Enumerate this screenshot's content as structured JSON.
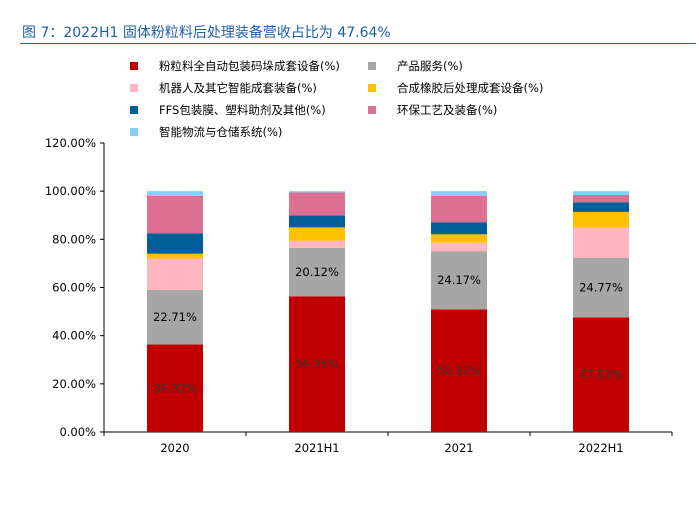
{
  "figure": {
    "title": "图 7：2022H1 固体粉粒料后处理装备营收占比为 47.64%"
  },
  "colors": {
    "title": "#1f5fa8",
    "series": [
      "#c00000",
      "#a6a6a6",
      "#ffb6c1",
      "#ffc000",
      "#005f99",
      "#db7093",
      "#87cefa"
    ]
  },
  "chart_data": {
    "type": "bar",
    "stacked": true,
    "categories": [
      "2020",
      "2021H1",
      "2021",
      "2022H1"
    ],
    "ylim": [
      0,
      120
    ],
    "yticks": [
      "0.00%",
      "20.00%",
      "40.00%",
      "60.00%",
      "80.00%",
      "100.00%",
      "120.00%"
    ],
    "legend_position": "top",
    "grid": false,
    "series": [
      {
        "name": "粉粒料全自动包装码垛成套设备(%)",
        "values": [
          36.32,
          56.35,
          50.93,
          47.63
        ],
        "labels": [
          "36.32%",
          "56.35%",
          "50.93%",
          "47.63%"
        ],
        "label_color": "#333333"
      },
      {
        "name": "产品服务(%)",
        "values": [
          22.71,
          20.12,
          24.17,
          24.77
        ],
        "labels": [
          "22.71%",
          "20.12%",
          "24.17%",
          "24.77%"
        ],
        "label_color": "#000000"
      },
      {
        "name": "机器人及其它智能成套装备(%)",
        "values": [
          13.0,
          3.0,
          3.5,
          12.5
        ]
      },
      {
        "name": "合成橡胶后处理成套设备(%)",
        "values": [
          2.0,
          5.5,
          3.5,
          6.5
        ]
      },
      {
        "name": "FFS包装膜、塑料助剂及其他(%)",
        "values": [
          8.5,
          5.0,
          5.0,
          4.0
        ]
      },
      {
        "name": "环保工艺及装备(%)",
        "values": [
          15.5,
          9.5,
          11.0,
          3.0
        ]
      },
      {
        "name": "智能物流与仓储系统(%)",
        "values": [
          1.97,
          0.53,
          1.9,
          1.6
        ]
      }
    ]
  }
}
